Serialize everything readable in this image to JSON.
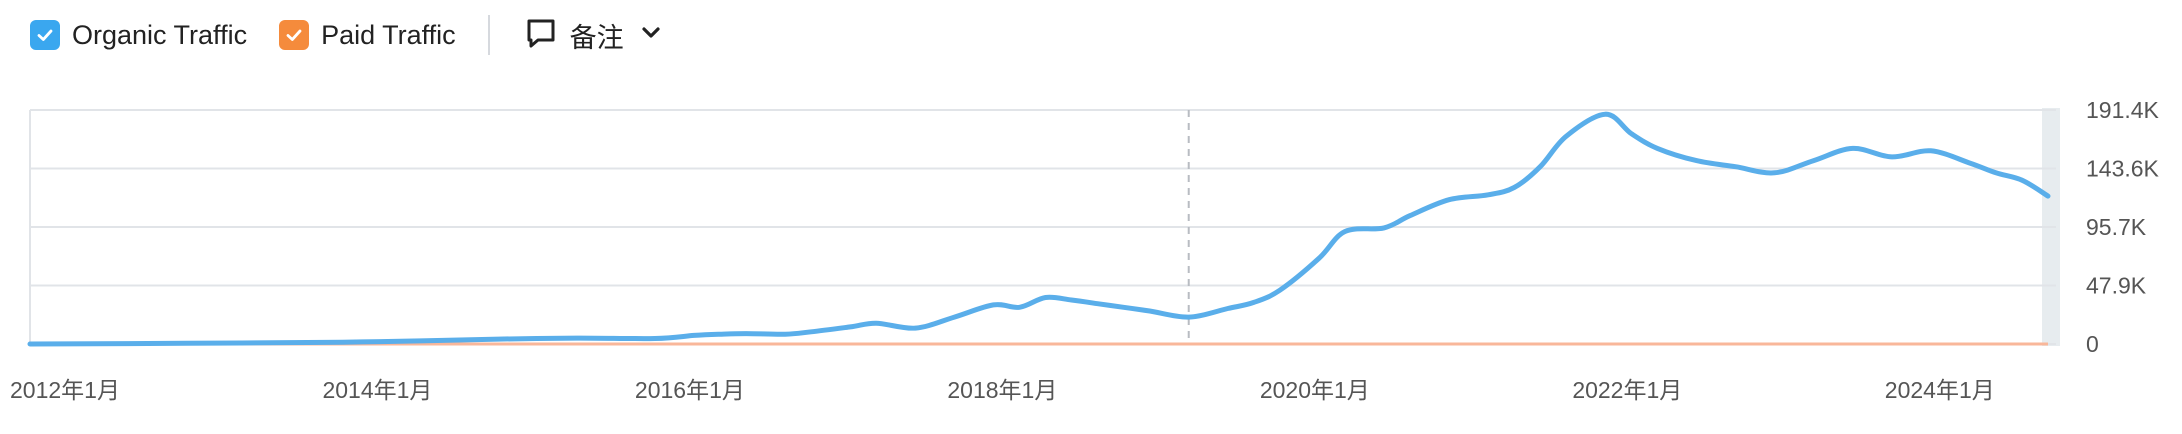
{
  "legend": {
    "organic": {
      "label": "Organic Traffic",
      "color": "#3aa7ef",
      "checked": true
    },
    "paid": {
      "label": "Paid Traffic",
      "color": "#f58b3c",
      "checked": true
    },
    "notes": {
      "label": "备注"
    }
  },
  "icons": [
    "checkbox-check-icon",
    "comment-icon",
    "chevron-down-icon"
  ],
  "chart_data": {
    "type": "line",
    "grid": true,
    "legend_position": "top-left",
    "x_tick_labels": [
      "2012年1月",
      "2014年1月",
      "2016年1月",
      "2018年1月",
      "2020年1月",
      "2022年1月",
      "2024年1月"
    ],
    "y_tick_labels": [
      "191.4K",
      "143.6K",
      "95.7K",
      "47.9K",
      "0"
    ],
    "ylim": [
      0,
      191400
    ],
    "xlim": [
      "2012-01",
      "2024-12"
    ],
    "annotation_date": "2019-06",
    "series": [
      {
        "name": "Organic Traffic",
        "color": "#5aaeea",
        "points": [
          [
            "2012-01",
            0
          ],
          [
            "2013-01",
            600
          ],
          [
            "2014-01",
            1500
          ],
          [
            "2014-07",
            2500
          ],
          [
            "2015-01",
            4000
          ],
          [
            "2015-07",
            4800
          ],
          [
            "2016-01",
            4500
          ],
          [
            "2016-04",
            7000
          ],
          [
            "2016-06",
            8000
          ],
          [
            "2016-08",
            8500
          ],
          [
            "2016-11",
            8000
          ],
          [
            "2017-01",
            10000
          ],
          [
            "2017-04",
            14000
          ],
          [
            "2017-06",
            17000
          ],
          [
            "2017-09",
            13000
          ],
          [
            "2017-12",
            22000
          ],
          [
            "2018-03",
            32000
          ],
          [
            "2018-05",
            30000
          ],
          [
            "2018-07",
            38000
          ],
          [
            "2018-09",
            36000
          ],
          [
            "2018-11",
            33000
          ],
          [
            "2019-01",
            30000
          ],
          [
            "2019-03",
            27000
          ],
          [
            "2019-06",
            22000
          ],
          [
            "2019-09",
            29000
          ],
          [
            "2019-11",
            34000
          ],
          [
            "2020-01",
            44000
          ],
          [
            "2020-04",
            70000
          ],
          [
            "2020-06",
            92000
          ],
          [
            "2020-09",
            95000
          ],
          [
            "2020-11",
            105000
          ],
          [
            "2021-02",
            118000
          ],
          [
            "2021-05",
            122000
          ],
          [
            "2021-07",
            128000
          ],
          [
            "2021-09",
            145000
          ],
          [
            "2021-11",
            170000
          ],
          [
            "2022-02",
            188000
          ],
          [
            "2022-04",
            172000
          ],
          [
            "2022-06",
            160000
          ],
          [
            "2022-09",
            150000
          ],
          [
            "2022-12",
            145000
          ],
          [
            "2023-03",
            140000
          ],
          [
            "2023-06",
            150000
          ],
          [
            "2023-09",
            160000
          ],
          [
            "2023-12",
            153000
          ],
          [
            "2024-03",
            158000
          ],
          [
            "2024-06",
            148000
          ],
          [
            "2024-08",
            140000
          ],
          [
            "2024-10",
            134000
          ],
          [
            "2024-12",
            121000
          ]
        ]
      },
      {
        "name": "Paid Traffic",
        "color": "#f9b79a",
        "points": [
          [
            "2012-01",
            0
          ],
          [
            "2024-12",
            0
          ]
        ]
      }
    ]
  }
}
